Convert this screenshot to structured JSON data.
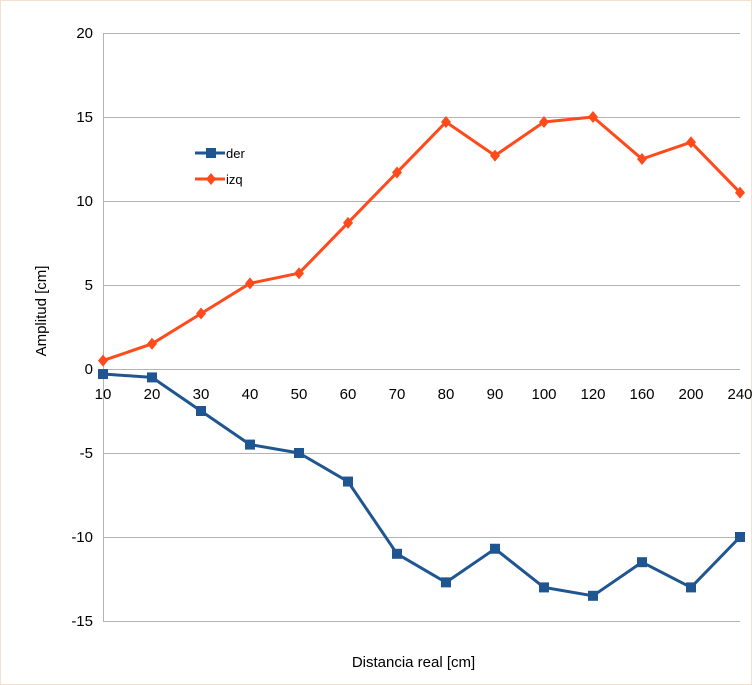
{
  "chart_data": {
    "type": "line",
    "title": "",
    "xlabel": "Distancia real [cm]",
    "ylabel": "Amplitud [cm]",
    "categories": [
      "10",
      "20",
      "30",
      "40",
      "50",
      "60",
      "70",
      "80",
      "90",
      "100",
      "120",
      "160",
      "200",
      "240"
    ],
    "ylim": [
      -15,
      20
    ],
    "yticks": [
      20,
      15,
      10,
      5,
      0,
      -5,
      -10,
      -15
    ],
    "grid": true,
    "legend_position": "upper-left",
    "series": [
      {
        "name": "der",
        "color": "#1f5591",
        "marker": "square",
        "values": [
          -0.3,
          -0.5,
          -2.5,
          -4.5,
          -5.0,
          -6.7,
          -11.0,
          -12.7,
          -10.7,
          -13.0,
          -13.5,
          -11.5,
          -13.0,
          -10.0
        ]
      },
      {
        "name": "izq",
        "color": "#ff4a1c",
        "marker": "diamond",
        "values": [
          0.5,
          1.5,
          3.3,
          5.1,
          5.7,
          8.7,
          11.7,
          14.7,
          12.7,
          14.7,
          15.0,
          12.5,
          13.5,
          10.5
        ]
      }
    ]
  }
}
